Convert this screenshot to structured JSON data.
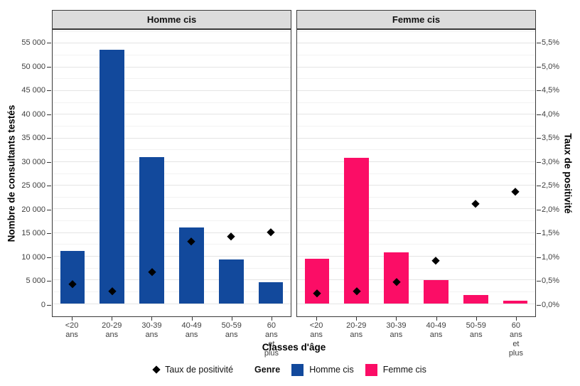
{
  "chart_data": {
    "type": "bar",
    "facets": [
      {
        "label": "Homme cis",
        "bar_color": "#12499c",
        "bars": [
          11000,
          53600,
          30900,
          16000,
          9200,
          4500
        ],
        "positivity_pct": [
          0.4,
          0.25,
          0.65,
          1.3,
          1.4,
          1.5
        ]
      },
      {
        "label": "Femme cis",
        "bar_color": "#fb0d66",
        "bars": [
          9400,
          30700,
          10800,
          4900,
          1700,
          600
        ],
        "positivity_pct": [
          0.2,
          0.25,
          0.45,
          0.9,
          2.1,
          2.35
        ]
      }
    ],
    "categories": [
      "<20\nans",
      "20-29\nans",
      "30-39\nans",
      "40-49\nans",
      "50-59\nans",
      "60 ans\net plus"
    ],
    "xlabel": "Classes d'âge",
    "ylabel_left": "Nombre de consultants testés",
    "ylabel_right": "Taux de positivité",
    "y_left": {
      "min": 0,
      "max": 55000,
      "step": 5000,
      "minor_step": 2500,
      "tick_labels": [
        "0",
        "5 000",
        "10 000",
        "15 000",
        "20 000",
        "25 000",
        "30 000",
        "35 000",
        "40 000",
        "45 000",
        "50 000",
        "55 000"
      ]
    },
    "y_right": {
      "min": 0,
      "max": 5.5,
      "step": 0.5,
      "tick_labels": [
        "0,0%",
        "0,5%",
        "1,0%",
        "1,5%",
        "2,0%",
        "2,5%",
        "3,0%",
        "3,5%",
        "4,0%",
        "4,5%",
        "5,0%",
        "5,5%"
      ]
    },
    "legend": {
      "points_label": "Taux de positivité",
      "group_title": "Genre",
      "point_color": "#000000"
    },
    "layout": {
      "grid": true,
      "legend_position": "bottom",
      "point_shape": "diamond"
    }
  }
}
